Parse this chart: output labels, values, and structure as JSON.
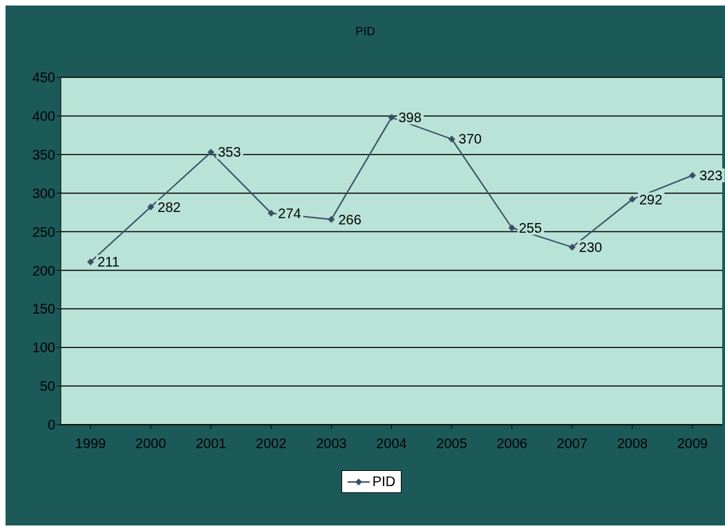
{
  "chart_data": {
    "type": "line",
    "title": "PID",
    "categories": [
      "1999",
      "2000",
      "2001",
      "2002",
      "2003",
      "2004",
      "2005",
      "2006",
      "2007",
      "2008",
      "2009"
    ],
    "series": [
      {
        "name": "PID",
        "color": "#3a4f66",
        "values": [
          211,
          282,
          353,
          274,
          266,
          398,
          370,
          255,
          230,
          292,
          323
        ]
      }
    ],
    "ylim": [
      0,
      450
    ],
    "yticks": [
      0,
      50,
      100,
      150,
      200,
      250,
      300,
      350,
      400,
      450
    ],
    "grid": "y",
    "legend": "bottom",
    "marker": "diamond",
    "line_style": "solid",
    "data_labels": true
  }
}
